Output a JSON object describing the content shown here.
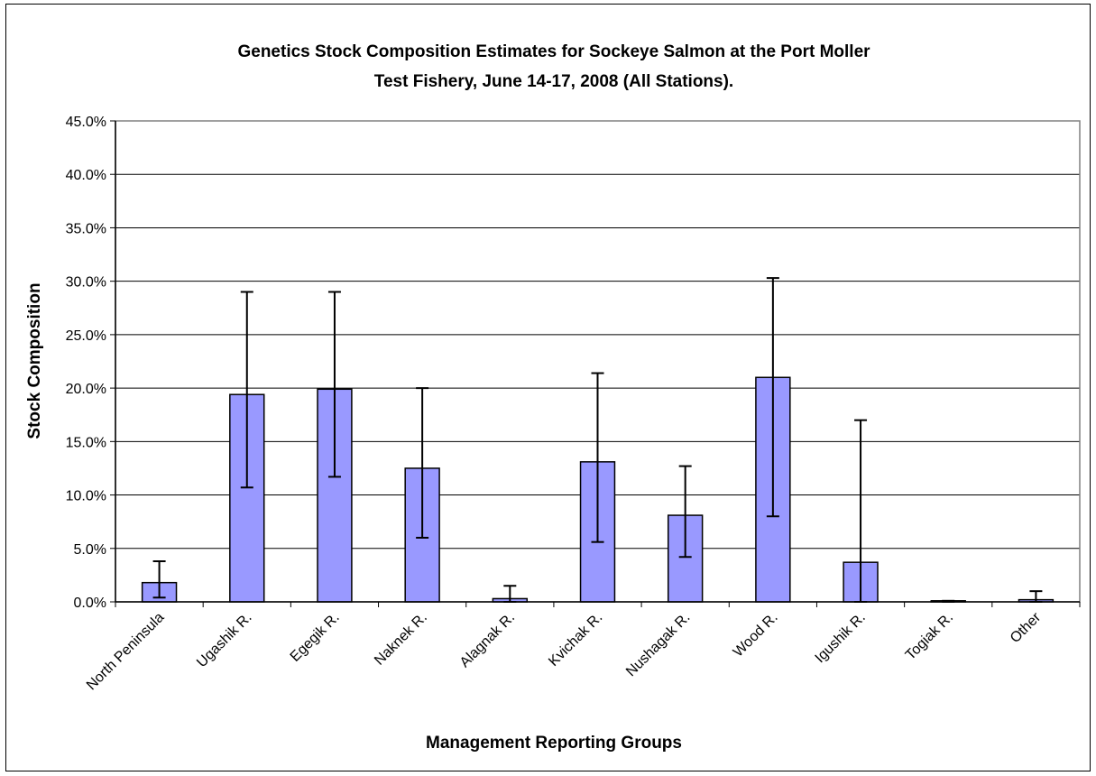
{
  "chart_data": {
    "type": "bar",
    "title_lines": [
      "Genetics Stock Composition Estimates for Sockeye Salmon at the Port Moller",
      "Test Fishery, June 14-17, 2008 (All Stations)."
    ],
    "xlabel": "Management Reporting Groups",
    "ylabel": "Stock Composition",
    "ylim": [
      0,
      0.45
    ],
    "y_ticks": [
      0,
      0.05,
      0.1,
      0.15,
      0.2,
      0.25,
      0.3,
      0.35,
      0.4,
      0.45
    ],
    "y_tick_labels": [
      "0.0%",
      "5.0%",
      "10.0%",
      "15.0%",
      "20.0%",
      "25.0%",
      "30.0%",
      "35.0%",
      "40.0%",
      "45.0%"
    ],
    "categories": [
      "North Peninsula",
      "Ugashik R.",
      "Egegik R.",
      "Naknek R.",
      "Alagnak R.",
      "Kvichak R.",
      "Nushagak R.",
      "Wood R.",
      "Igushik R.",
      "Togiak R.",
      "Other"
    ],
    "values": [
      0.018,
      0.194,
      0.199,
      0.125,
      0.003,
      0.131,
      0.081,
      0.21,
      0.037,
      0.001,
      0.002
    ],
    "error_lower": [
      0.004,
      0.107,
      0.117,
      0.06,
      0.0,
      0.056,
      0.042,
      0.08,
      0.0,
      0.0,
      0.0
    ],
    "error_upper": [
      0.038,
      0.29,
      0.29,
      0.2,
      0.015,
      0.214,
      0.127,
      0.303,
      0.17,
      0.001,
      0.01
    ],
    "grid": true,
    "legend": "none",
    "colors": {
      "bar_fill": "#9999FF",
      "bar_stroke": "#000000",
      "plot_background": "#FFFFFF",
      "gridline": "#000000",
      "plot_border": "#808080"
    }
  }
}
